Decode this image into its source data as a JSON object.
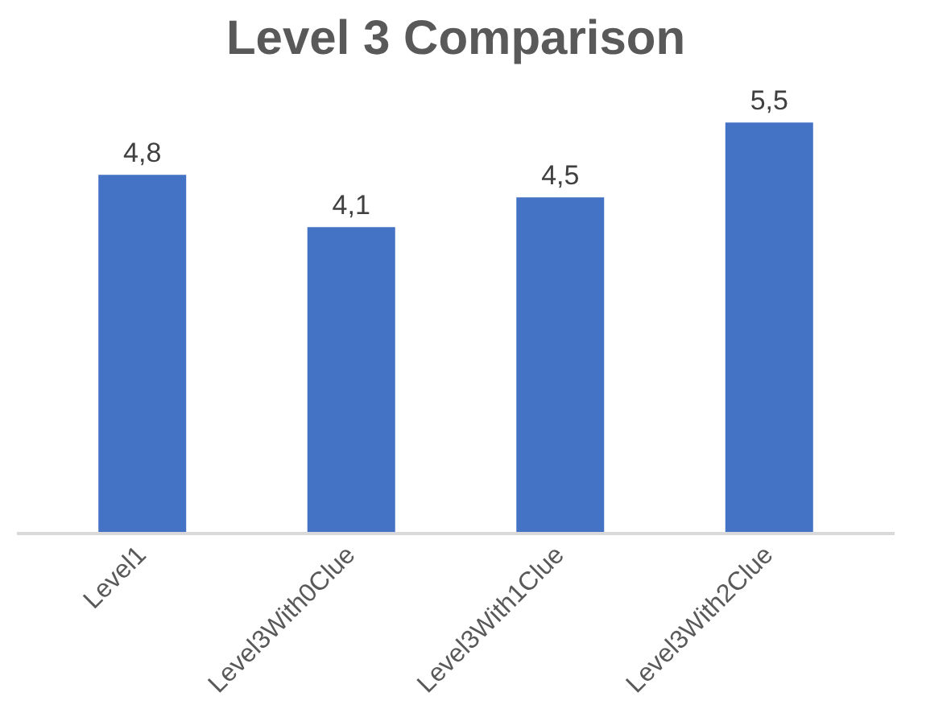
{
  "chart_data": {
    "type": "bar",
    "title": "Level 3 Comparison",
    "categories": [
      "Level1",
      "Level3With0Clue",
      "Level3With1Clue",
      "Level3With2Clue"
    ],
    "values": [
      4.8,
      4.1,
      4.5,
      5.5
    ],
    "value_labels": [
      "4,8",
      "4,1",
      "4,5",
      "5,5"
    ],
    "color": "#4472c4"
  }
}
